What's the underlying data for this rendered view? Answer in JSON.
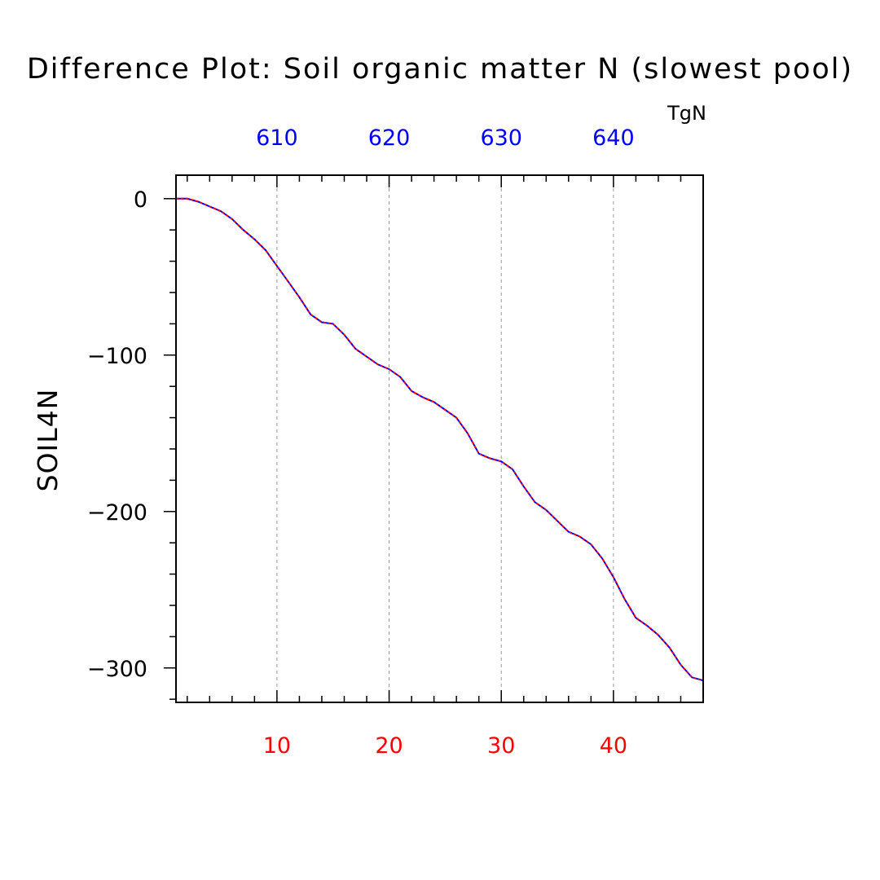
{
  "chart_data": {
    "type": "line",
    "title": "Difference Plot: Soil organic matter N (slowest pool)",
    "units_label": "TgN",
    "ylabel": "SOIL4N",
    "xlim": [
      1,
      48
    ],
    "ylim": [
      -322,
      15
    ],
    "bottom_axis": {
      "ticks": [
        10,
        20,
        30,
        40
      ],
      "color": "#ff0000"
    },
    "top_axis": {
      "ticks": [
        610,
        620,
        630,
        640
      ],
      "color": "#0000ff"
    },
    "yticks": [
      0,
      -100,
      -200,
      -300
    ],
    "grid": "vertical-dashed",
    "x": [
      1,
      2,
      3,
      4,
      5,
      6,
      7,
      8,
      9,
      10,
      11,
      12,
      13,
      14,
      15,
      16,
      17,
      18,
      19,
      20,
      21,
      22,
      23,
      24,
      25,
      26,
      27,
      28,
      29,
      30,
      31,
      32,
      33,
      34,
      35,
      36,
      37,
      38,
      39,
      40,
      41,
      42,
      43,
      44,
      45,
      46,
      47,
      48
    ],
    "series": [
      {
        "color": "#0000ff",
        "values": [
          0,
          0,
          -2,
          -5,
          -8,
          -13,
          -20,
          -26,
          -33,
          -43,
          -53,
          -63,
          -74,
          -79,
          -80,
          -87,
          -96,
          -101,
          -106,
          -109,
          -114,
          -123,
          -127,
          -130,
          -135,
          -140,
          -150,
          -163,
          -166,
          -168,
          -173,
          -184,
          -194,
          -199,
          -206,
          -213,
          -216,
          -221,
          -230,
          -242,
          -256,
          -268,
          -273,
          -279,
          -287,
          -298,
          -306,
          -308
        ]
      },
      {
        "color": "#ff0000",
        "dashed": true,
        "values": [
          0,
          0,
          -2,
          -5,
          -8,
          -13,
          -20,
          -26,
          -33,
          -43,
          -53,
          -63,
          -74,
          -79,
          -80,
          -87,
          -96,
          -101,
          -106,
          -109,
          -114,
          -123,
          -127,
          -130,
          -135,
          -140,
          -150,
          -163,
          -166,
          -168,
          -173,
          -184,
          -194,
          -199,
          -206,
          -213,
          -216,
          -221,
          -230,
          -242,
          -256,
          -268,
          -273,
          -279,
          -287,
          -298,
          -306,
          -308
        ]
      }
    ]
  }
}
